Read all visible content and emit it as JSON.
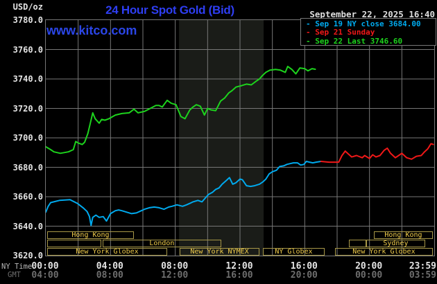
{
  "header": {
    "unit_label": "USD/oz",
    "title": "24 Hour Spot Gold (Bid)",
    "datetime": "September 22, 2025 16:40",
    "watermark": "www.kitco.com"
  },
  "legend": {
    "items": [
      {
        "label": "Sep 19 NY close 3684.00",
        "color": "#00aaee"
      },
      {
        "label": "Sep 21 Sunday",
        "color": "#f01818"
      },
      {
        "label": "Sep 22 Last 3746.60",
        "color": "#1dd31d"
      }
    ]
  },
  "axes": {
    "y_tick_labels": [
      "3780.0",
      "3760.0",
      "3740.0",
      "3720.0",
      "3700.0",
      "3680.0",
      "3660.0",
      "3640.0",
      "3620.0"
    ],
    "x_row1_label": "NY Time",
    "x_row2_label": "GMT",
    "x_ticks": [
      {
        "hour": 0,
        "ny": "00:00",
        "gmt": "04:00"
      },
      {
        "hour": 4,
        "ny": "04:00",
        "gmt": "08:00"
      },
      {
        "hour": 8,
        "ny": "08:00",
        "gmt": "12:00"
      },
      {
        "hour": 12,
        "ny": "12:00",
        "gmt": "16:00"
      },
      {
        "hour": 16,
        "ny": "16:00",
        "gmt": "20:00"
      },
      {
        "hour": 20,
        "ny": "20:00",
        "gmt": "00:00"
      },
      {
        "hour": 24,
        "ny": "23:59",
        "gmt": "03:59"
      }
    ]
  },
  "colors": {
    "background": "#000000",
    "grid": "#777777",
    "title_blue": "#2e3ef2",
    "watermark_blue": "#2b46e8",
    "cyan_series": "#00aaee",
    "red_series": "#f01818",
    "green_series": "#1dd31d",
    "session_border": "#a89848",
    "session_text": "#f0cc4a",
    "nymex_band": "#1a1c18"
  },
  "chart_data": {
    "type": "line",
    "title": "24 Hour Spot Gold (Bid)",
    "ylabel": "USD/oz",
    "xlim_hours_ny": [
      0,
      24
    ],
    "ylim": [
      3620,
      3780
    ],
    "y_tick_step": 20,
    "x_gridline_step_hours": 2,
    "grid": true,
    "legend_position": "top-right",
    "highlight_band_hours": [
      8.23,
      13.46
    ],
    "series": [
      {
        "name": "Sep 19 NY close",
        "close_value": 3684.0,
        "color": "#00aaee",
        "points": [
          [
            0,
            3649.5
          ],
          [
            0.15,
            3653.5
          ],
          [
            0.3,
            3656
          ],
          [
            0.85,
            3657.5
          ],
          [
            1.5,
            3658
          ],
          [
            1.95,
            3655.5
          ],
          [
            2.3,
            3652.5
          ],
          [
            2.55,
            3650
          ],
          [
            2.7,
            3646.5
          ],
          [
            2.8,
            3640.5
          ],
          [
            2.9,
            3646
          ],
          [
            3.1,
            3647.5
          ],
          [
            3.3,
            3646
          ],
          [
            3.55,
            3646.5
          ],
          [
            3.75,
            3643.5
          ],
          [
            4.0,
            3648.5
          ],
          [
            4.3,
            3650.5
          ],
          [
            4.5,
            3651
          ],
          [
            4.7,
            3650.5
          ],
          [
            5.0,
            3649.5
          ],
          [
            5.3,
            3648.5
          ],
          [
            5.6,
            3649
          ],
          [
            5.9,
            3650.5
          ],
          [
            6.1,
            3651.5
          ],
          [
            6.4,
            3652.5
          ],
          [
            6.7,
            3653
          ],
          [
            7.0,
            3652.5
          ],
          [
            7.3,
            3651.5
          ],
          [
            7.6,
            3653
          ],
          [
            7.8,
            3653.5
          ],
          [
            8.1,
            3654.5
          ],
          [
            8.45,
            3653.5
          ],
          [
            8.7,
            3654.5
          ],
          [
            8.9,
            3655.5
          ],
          [
            9.1,
            3656.5
          ],
          [
            9.4,
            3657.5
          ],
          [
            9.65,
            3656.5
          ],
          [
            9.85,
            3659
          ],
          [
            10.05,
            3661.5
          ],
          [
            10.3,
            3663
          ],
          [
            10.5,
            3665
          ],
          [
            10.7,
            3666
          ],
          [
            10.9,
            3668.5
          ],
          [
            11.15,
            3671
          ],
          [
            11.35,
            3673
          ],
          [
            11.55,
            3668.5
          ],
          [
            11.75,
            3669.5
          ],
          [
            12.0,
            3672
          ],
          [
            12.15,
            3671.5
          ],
          [
            12.4,
            3667.5
          ],
          [
            12.65,
            3667
          ],
          [
            12.9,
            3667.5
          ],
          [
            13.2,
            3668.5
          ],
          [
            13.4,
            3670
          ],
          [
            13.6,
            3672
          ],
          [
            13.8,
            3675.5
          ],
          [
            14.0,
            3677
          ],
          [
            14.25,
            3678
          ],
          [
            14.45,
            3680.5
          ],
          [
            14.7,
            3681
          ],
          [
            14.9,
            3682
          ],
          [
            15.1,
            3682.5
          ],
          [
            15.3,
            3683
          ],
          [
            15.55,
            3683
          ],
          [
            15.75,
            3681.5
          ],
          [
            15.95,
            3682
          ],
          [
            16.1,
            3684
          ],
          [
            16.3,
            3683.5
          ],
          [
            16.5,
            3683
          ],
          [
            16.7,
            3683.5
          ],
          [
            17.0,
            3684
          ]
        ]
      },
      {
        "name": "Sep 21 Sunday",
        "color": "#f01818",
        "points": [
          [
            17.0,
            3684
          ],
          [
            17.5,
            3683.5
          ],
          [
            18.1,
            3683.5
          ],
          [
            18.3,
            3688
          ],
          [
            18.5,
            3691
          ],
          [
            18.7,
            3689
          ],
          [
            18.9,
            3687
          ],
          [
            19.2,
            3688
          ],
          [
            19.55,
            3686.5
          ],
          [
            19.7,
            3688
          ],
          [
            20.0,
            3686
          ],
          [
            20.2,
            3688.5
          ],
          [
            20.4,
            3687
          ],
          [
            20.65,
            3688
          ],
          [
            20.9,
            3691.5
          ],
          [
            21.1,
            3693
          ],
          [
            21.3,
            3689.5
          ],
          [
            21.6,
            3686.5
          ],
          [
            21.8,
            3688
          ],
          [
            22.0,
            3689.5
          ],
          [
            22.3,
            3686.5
          ],
          [
            22.6,
            3685.5
          ],
          [
            22.9,
            3687.5
          ],
          [
            23.2,
            3688
          ],
          [
            23.4,
            3690.5
          ],
          [
            23.6,
            3692.5
          ],
          [
            23.8,
            3696
          ],
          [
            23.95,
            3695.5
          ]
        ]
      },
      {
        "name": "Sep 22 Last",
        "last_value": 3746.6,
        "color": "#1dd31d",
        "points": [
          [
            0,
            3694
          ],
          [
            0.3,
            3692
          ],
          [
            0.5,
            3690.5
          ],
          [
            0.9,
            3689.5
          ],
          [
            1.4,
            3690.5
          ],
          [
            1.7,
            3692
          ],
          [
            1.85,
            3697.5
          ],
          [
            2.0,
            3696.5
          ],
          [
            2.25,
            3695.5
          ],
          [
            2.4,
            3697
          ],
          [
            2.6,
            3703
          ],
          [
            2.75,
            3710
          ],
          [
            2.9,
            3717
          ],
          [
            3.05,
            3713
          ],
          [
            3.3,
            3710
          ],
          [
            3.45,
            3712.5
          ],
          [
            3.65,
            3712
          ],
          [
            3.9,
            3713
          ],
          [
            4.3,
            3715.5
          ],
          [
            4.7,
            3716.5
          ],
          [
            5.15,
            3717
          ],
          [
            5.45,
            3719.5
          ],
          [
            5.7,
            3717
          ],
          [
            6.1,
            3718
          ],
          [
            6.55,
            3720.5
          ],
          [
            6.8,
            3722
          ],
          [
            7.0,
            3722
          ],
          [
            7.2,
            3721
          ],
          [
            7.5,
            3725.5
          ],
          [
            7.75,
            3723.5
          ],
          [
            8.05,
            3722.5
          ],
          [
            8.35,
            3714.5
          ],
          [
            8.6,
            3713
          ],
          [
            8.9,
            3719
          ],
          [
            9.1,
            3721
          ],
          [
            9.3,
            3722.5
          ],
          [
            9.55,
            3721.5
          ],
          [
            9.8,
            3715.5
          ],
          [
            10.0,
            3720
          ],
          [
            10.2,
            3719
          ],
          [
            10.5,
            3718.5
          ],
          [
            10.8,
            3725
          ],
          [
            11.05,
            3727
          ],
          [
            11.3,
            3730.5
          ],
          [
            11.5,
            3732
          ],
          [
            11.75,
            3734.5
          ],
          [
            12.1,
            3735.5
          ],
          [
            12.4,
            3736.5
          ],
          [
            12.7,
            3736
          ],
          [
            13.0,
            3738.5
          ],
          [
            13.2,
            3740
          ],
          [
            13.4,
            3742.5
          ],
          [
            13.6,
            3744.5
          ],
          [
            13.85,
            3746
          ],
          [
            14.2,
            3746.5
          ],
          [
            14.5,
            3746
          ],
          [
            14.8,
            3744.5
          ],
          [
            14.95,
            3748.5
          ],
          [
            15.2,
            3746.5
          ],
          [
            15.45,
            3743.5
          ],
          [
            15.7,
            3747.5
          ],
          [
            16.0,
            3747
          ],
          [
            16.2,
            3745.5
          ],
          [
            16.45,
            3747
          ],
          [
            16.65,
            3746.6
          ]
        ]
      }
    ],
    "sessions": [
      {
        "row": 1,
        "label": "Hong Kong",
        "start": 0.09,
        "end": 5.44
      },
      {
        "row": 1,
        "label": "Hong Kong",
        "start": 20.27,
        "end": 23.91
      },
      {
        "row": 2,
        "label": "",
        "start": 0.09,
        "end": 3.43
      },
      {
        "row": 2,
        "label": "London",
        "start": 3.51,
        "end": 10.84
      },
      {
        "row": 2,
        "label": "",
        "start": 18.73,
        "end": 19.8
      },
      {
        "row": 2,
        "label": "Sydney",
        "start": 19.8,
        "end": 23.44
      },
      {
        "row": 3,
        "label": "New York Globex",
        "start": 0.09,
        "end": 7.5
      },
      {
        "row": 3,
        "label": "New York NYMEX",
        "start": 8.27,
        "end": 13.2
      },
      {
        "row": 3,
        "label": "NY Globex",
        "start": 13.41,
        "end": 17.23
      },
      {
        "row": 3,
        "label": "New York Globex",
        "start": 17.87,
        "end": 23.91
      }
    ]
  }
}
